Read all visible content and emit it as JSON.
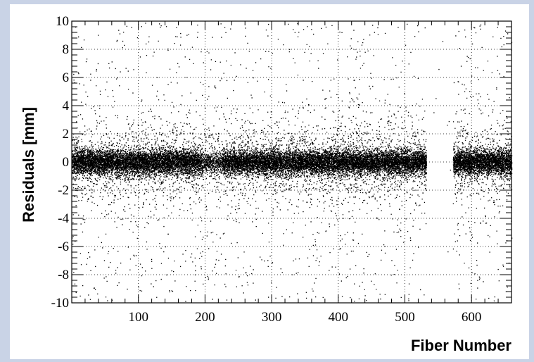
{
  "chart_data": {
    "type": "scatter",
    "title": "",
    "xlabel": "Fiber Number",
    "ylabel": "Residuals [mm]",
    "xlim": [
      0,
      660
    ],
    "ylim": [
      -10,
      10
    ],
    "x_ticks": [
      100,
      200,
      300,
      400,
      500,
      600
    ],
    "y_ticks": [
      -10,
      -8,
      -6,
      -4,
      -2,
      0,
      2,
      4,
      6,
      8,
      10
    ],
    "grid": true,
    "grid_style": "dotted",
    "marker_color": "#000000",
    "series": [
      {
        "description": "dense band of residuals near 0 mm with sparse outliers up to ±10 mm",
        "segments": [
          {
            "x_range": [
              0,
              195
            ],
            "core_sigma_mm": 0.45
          },
          {
            "x_range": [
              195,
              225
            ],
            "core_sigma_mm": 0.35,
            "note": "reduced density"
          },
          {
            "x_range": [
              225,
              532
            ],
            "core_sigma_mm": 0.45
          },
          {
            "x_range": [
              572,
              660
            ],
            "core_sigma_mm": 0.45
          }
        ],
        "gap_x_range": [
          532,
          572
        ]
      }
    ]
  },
  "colors": {
    "page_background": "#c9d3e6",
    "plot_background": "#ffffff",
    "markers": "#000000"
  }
}
